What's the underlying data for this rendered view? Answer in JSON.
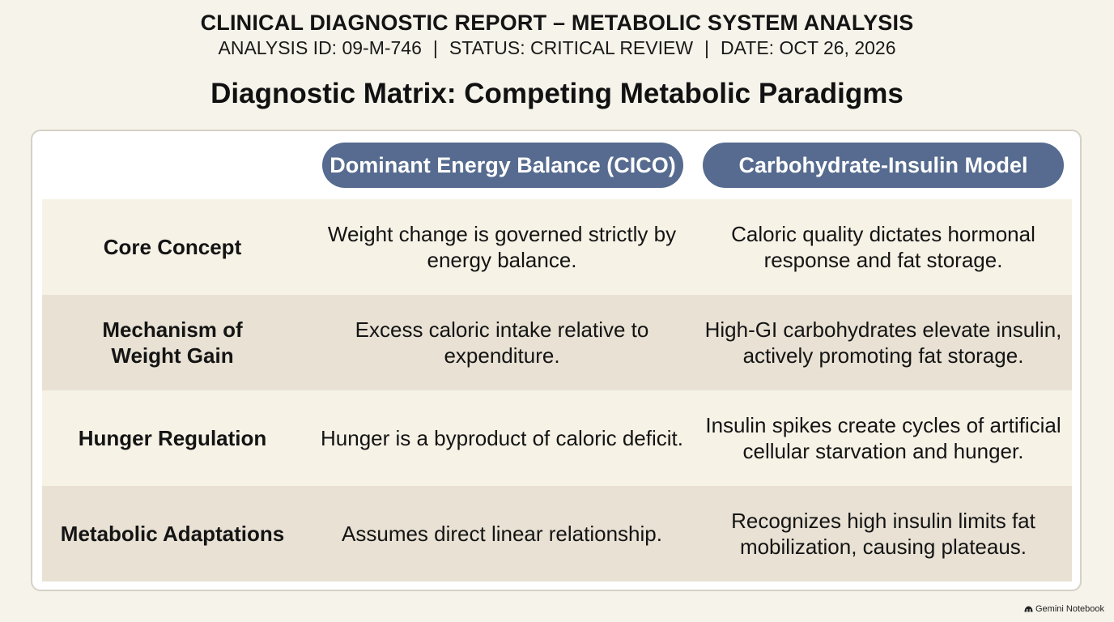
{
  "header": {
    "title": "CLINICAL DIAGNOSTIC REPORT – METABOLIC SYSTEM ANALYSIS",
    "analysis_id": "ANALYSIS ID: 09-M-746",
    "status": "STATUS: CRITICAL REVIEW",
    "date": "DATE: OCT 26, 2026",
    "separator": "|"
  },
  "matrix": {
    "title": "Diagnostic Matrix: Competing Metabolic Paradigms",
    "columns": [
      "Dominant Energy Balance (CICO)",
      "Carbohydrate-Insulin Model"
    ],
    "rows": [
      {
        "label": "Core Concept",
        "cico": "Weight change is governed strictly by energy balance.",
        "cim": "Caloric quality dictates hormonal response and fat storage."
      },
      {
        "label": "Mechanism of Weight Gain",
        "cico": "Excess caloric intake relative to expenditure.",
        "cim": "High-GI carbohydrates elevate insulin, actively promoting fat storage."
      },
      {
        "label": "Hunger Regulation",
        "cico": "Hunger is a byproduct of caloric deficit.",
        "cim": "Insulin spikes create cycles of artificial cellular starvation and hunger."
      },
      {
        "label": "Metabolic Adaptations",
        "cico": "Assumes direct linear relationship.",
        "cim": "Recognizes high insulin limits fat mobilization, causing plateaus."
      }
    ]
  },
  "footer": {
    "badge": "Gemini Notebook",
    "badge_icon": "notebook-logo-icon"
  },
  "colors": {
    "background": "#f6f3ea",
    "header_pill": "#566b8f",
    "row_light": "#f6f2e6",
    "row_dark": "#e8e1d4"
  }
}
